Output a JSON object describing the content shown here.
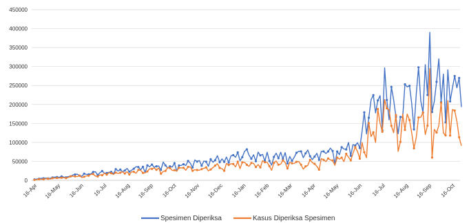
{
  "chart_data": {
    "type": "line",
    "title": "",
    "xlabel": "",
    "ylabel": "",
    "ylim": [
      0,
      450000
    ],
    "y_ticks": [
      0,
      50000,
      100000,
      150000,
      200000,
      250000,
      300000,
      350000,
      400000,
      450000
    ],
    "x_tick_labels": [
      "16-Apr",
      "16-May",
      "16-Jun",
      "16-Jul",
      "16-Aug",
      "16-Sep",
      "16-Oct",
      "16-Nov",
      "16-Dec",
      "16-Jan",
      "16-Feb",
      "16-Mar",
      "16-Apr",
      "16-May",
      "16-Jun",
      "16-Jul",
      "16-Aug",
      "16-Sep",
      "16-Oct"
    ],
    "x_period_months": 18.4,
    "grid": "horizontal",
    "legend_position": "bottom",
    "series": [
      {
        "name": "Spesimen Diperiksa",
        "color": "#4472C4",
        "approx_points": [
          [
            "16-Apr",
            3000
          ],
          [
            "16-May",
            8000
          ],
          [
            "16-Jun",
            15000
          ],
          [
            "16-Jul",
            22000
          ],
          [
            "16-Aug",
            27000
          ],
          [
            "16-Sep",
            38000
          ],
          [
            "16-Oct",
            42000
          ],
          [
            "16-Nov",
            47000
          ],
          [
            "16-Dec",
            55000
          ],
          [
            "16-Jan",
            68000
          ],
          [
            "16-Feb",
            62000
          ],
          [
            "16-Mar",
            65000
          ],
          [
            "16-Apr",
            70000
          ],
          [
            "16-May",
            72000
          ],
          [
            "16-Jun",
            110000
          ],
          [
            "16-Jul",
            240000
          ],
          [
            "16-Aug",
            215000
          ],
          [
            "16-Sep",
            250000
          ],
          [
            "16-Oct",
            240000
          ]
        ],
        "peak": [
          "16-Sep",
          390000
        ]
      },
      {
        "name": "Kasus Diperiksa Spesimen",
        "color": "#ED7D31",
        "approx_points": [
          [
            "16-Apr",
            2000
          ],
          [
            "16-May",
            6000
          ],
          [
            "16-Jun",
            11000
          ],
          [
            "16-Jul",
            16000
          ],
          [
            "16-Aug",
            20000
          ],
          [
            "16-Sep",
            27000
          ],
          [
            "16-Oct",
            29000
          ],
          [
            "16-Nov",
            32000
          ],
          [
            "16-Dec",
            38000
          ],
          [
            "16-Jan",
            45000
          ],
          [
            "16-Feb",
            42000
          ],
          [
            "16-Mar",
            44000
          ],
          [
            "16-Apr",
            47000
          ],
          [
            "16-May",
            48000
          ],
          [
            "16-Jun",
            80000
          ],
          [
            "16-Jul",
            165000
          ],
          [
            "16-Aug",
            140000
          ],
          [
            "16-Sep",
            170000
          ],
          [
            "16-Oct",
            165000
          ]
        ],
        "peak": [
          "16-Sep",
          295000
        ]
      }
    ]
  }
}
